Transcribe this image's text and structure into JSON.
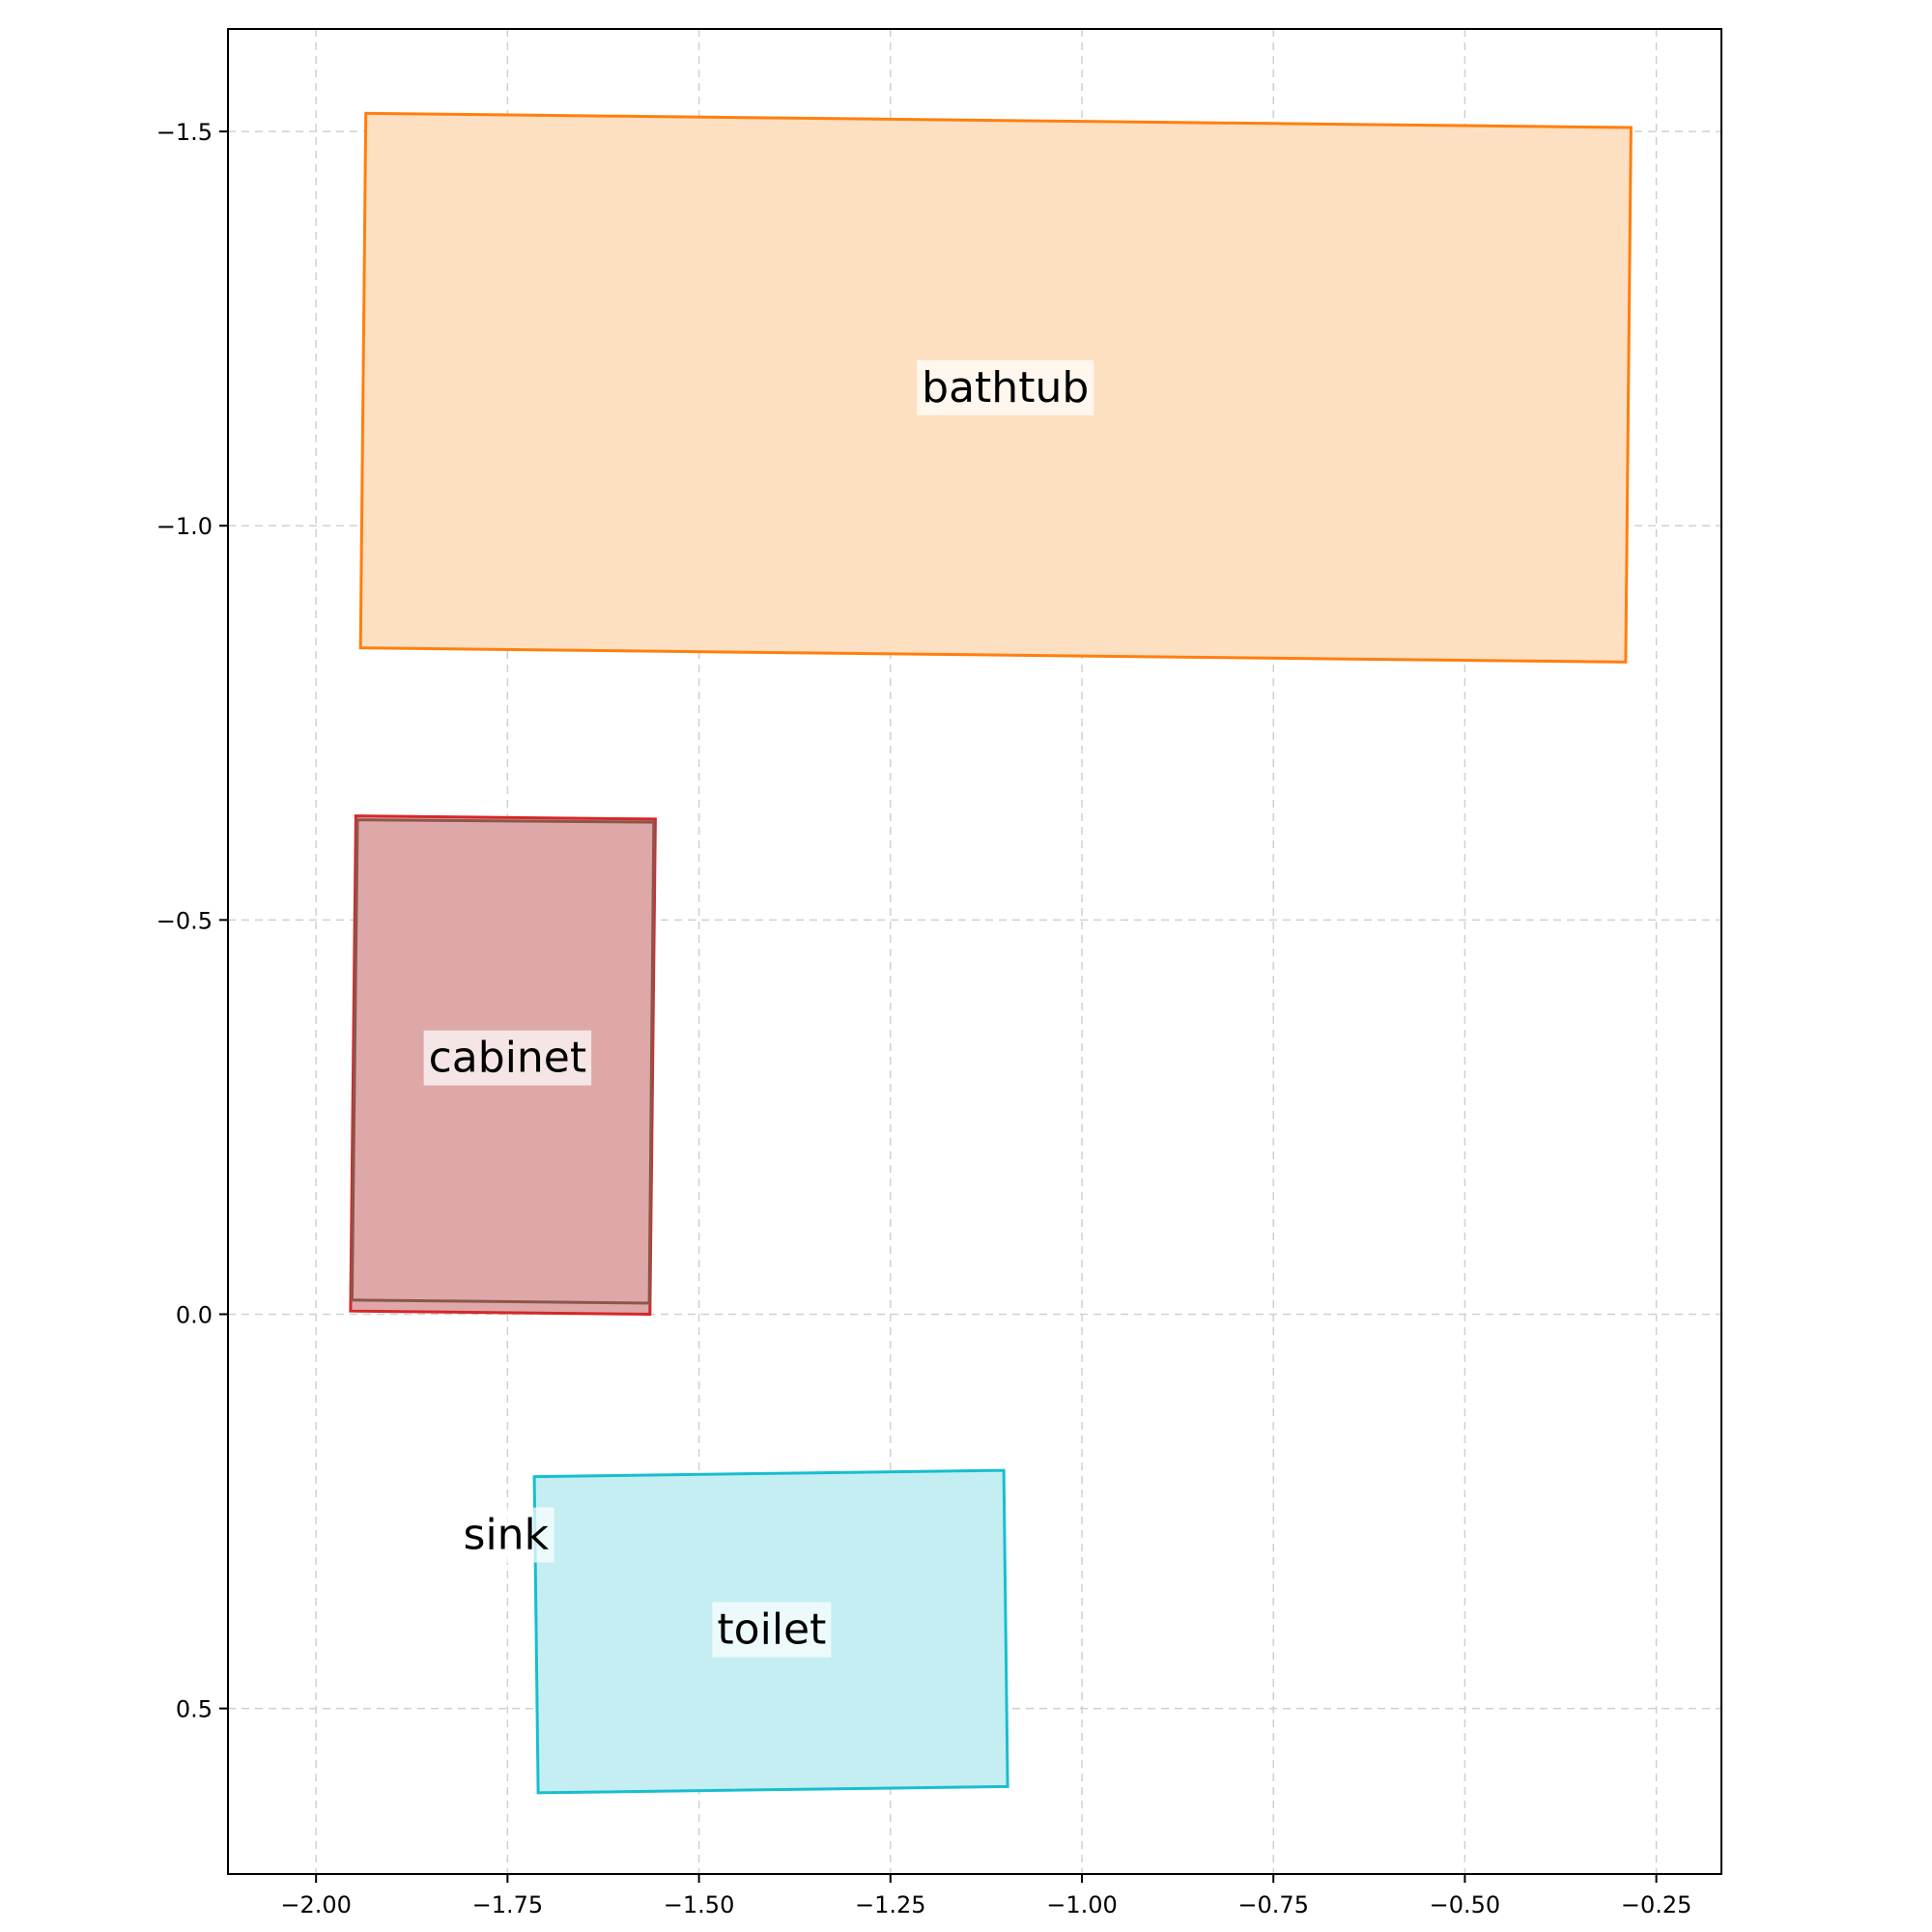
{
  "chart_data": {
    "type": "floorplan",
    "xlim": [
      -2.115,
      -0.165
    ],
    "ylim": [
      0.71,
      -1.63
    ],
    "y_inverted": true,
    "xticks": [
      -2.0,
      -1.75,
      -1.5,
      -1.25,
      -1.0,
      -0.75,
      -0.5,
      -0.25
    ],
    "xtick_labels": [
      "−2.00",
      "−1.75",
      "−1.50",
      "−1.25",
      "−1.00",
      "−0.75",
      "−0.50",
      "−0.25"
    ],
    "yticks": [
      -1.5,
      -1.0,
      -0.5,
      0.0,
      0.5
    ],
    "ytick_labels": [
      "−1.5",
      "−1.0",
      "−0.5",
      "0.0",
      "0.5"
    ],
    "grid": true,
    "objects": [
      {
        "label": "bathtub",
        "color": "#ff7f0e",
        "fill": "#fddfc2",
        "polygon": [
          [
            -1.935,
            -1.523
          ],
          [
            -0.283,
            -1.505
          ],
          [
            -0.29,
            -0.827
          ],
          [
            -1.942,
            -0.845
          ]
        ],
        "label_pos": [
          -1.1,
          -1.175
        ]
      },
      {
        "label": "cabinet",
        "color": "#d62728",
        "fill": "#dea8a8",
        "polygon": [
          [
            -1.948,
            -0.632
          ],
          [
            -1.557,
            -0.628
          ],
          [
            -1.564,
            0.0
          ],
          [
            -1.955,
            -0.004
          ]
        ],
        "label_pos": [
          -1.75,
          -0.325
        ]
      },
      {
        "label": "",
        "color": "#8c564b",
        "fill": "none",
        "polygon": [
          [
            -1.946,
            -0.627
          ],
          [
            -1.559,
            -0.624
          ],
          [
            -1.565,
            -0.014
          ],
          [
            -1.953,
            -0.018
          ]
        ]
      },
      {
        "label": "toilet",
        "color": "#17becf",
        "fill": "#c4eef2",
        "polygon": [
          [
            -1.715,
            0.206
          ],
          [
            -1.102,
            0.198
          ],
          [
            -1.097,
            0.599
          ],
          [
            -1.71,
            0.607
          ]
        ],
        "label_pos": [
          -1.405,
          0.4
        ]
      },
      {
        "label": "sink",
        "color": "none",
        "fill": "none",
        "polygon": [],
        "label_pos": [
          -1.752,
          0.28
        ]
      }
    ]
  }
}
